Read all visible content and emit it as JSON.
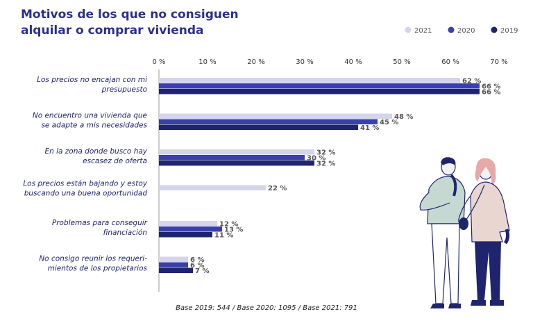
{
  "title": "Motivos de los que no consiguen alquilar o comprar vivienda",
  "footnote": "Base 2019: 544 / Base 2020: 1095 / Base 2021: 791",
  "colors": {
    "title": "#2a2f8f",
    "2021": "#d4d4ea",
    "2020": "#3a3fae",
    "2019": "#1f246e",
    "axis": "#9a9a9a"
  },
  "chart_data": {
    "type": "bar",
    "orientation": "horizontal",
    "title": "Motivos de los que no consiguen alquilar o comprar vivienda",
    "xlim": [
      0,
      70
    ],
    "x_ticks": [
      "0 %",
      "10 %",
      "20 %",
      "30 %",
      "40 %",
      "50 %",
      "60 %",
      "70 %"
    ],
    "x_tick_values": [
      0,
      10,
      20,
      30,
      40,
      50,
      60,
      70
    ],
    "legend_position": "top-right",
    "grid": false,
    "categories": [
      [
        "Los precios no encajan con mi",
        "presupuesto"
      ],
      [
        "No encuentro una vivienda que",
        "se adapte a mis necesidades"
      ],
      [
        "En la zona donde busco hay",
        "escasez de oferta"
      ],
      [
        "Los precios están bajando y estoy",
        "buscando una buena oportunidad"
      ],
      [
        "Problemas para conseguir",
        "financiación"
      ],
      [
        "No consigo reunir los requeri-",
        "mientos de los propietarios"
      ]
    ],
    "series": [
      {
        "name": "2021",
        "color": "#d4d4ea",
        "values": [
          62,
          48,
          32,
          22,
          12,
          6
        ],
        "labels": [
          "62 %",
          "48 %",
          "32 %",
          "22 %",
          "12 %",
          "6 %"
        ]
      },
      {
        "name": "2020",
        "color": "#3a3fae",
        "values": [
          66,
          45,
          30,
          null,
          13,
          6
        ],
        "labels": [
          "66 %",
          "45 %",
          "30 %",
          null,
          "13 %",
          "6 %"
        ]
      },
      {
        "name": "2019",
        "color": "#1f246e",
        "values": [
          66,
          41,
          32,
          null,
          11,
          7
        ],
        "labels": [
          "66 %",
          "41 %",
          "32 %",
          null,
          "11 %",
          "7 %"
        ]
      }
    ]
  }
}
